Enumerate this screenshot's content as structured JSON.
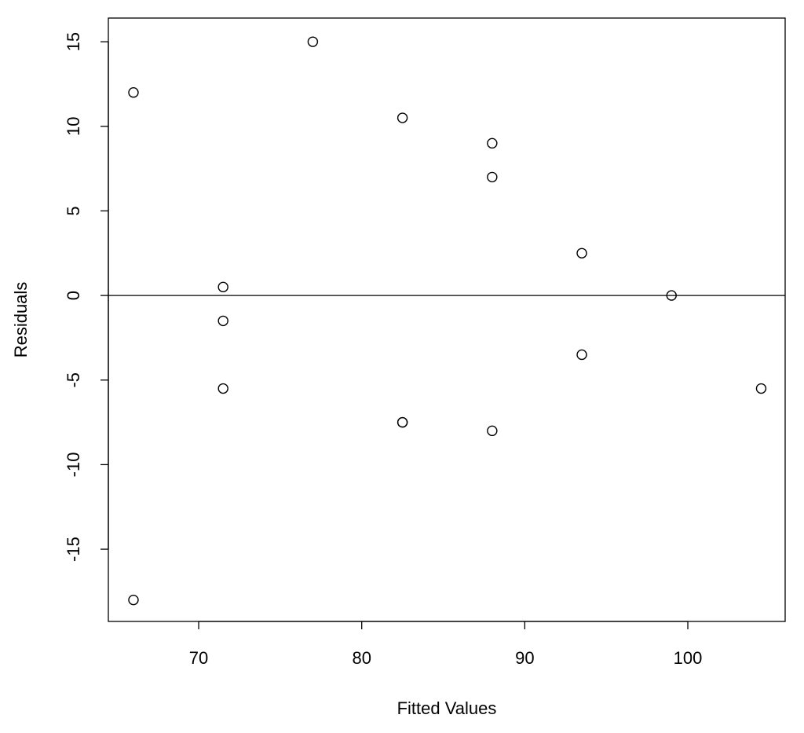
{
  "chart_data": {
    "type": "scatter",
    "xlabel": "Fitted Values",
    "ylabel": "Residuals",
    "x": [
      66,
      66,
      77,
      71.5,
      71.5,
      71.5,
      82.5,
      82.5,
      82.5,
      88,
      88,
      88,
      93.5,
      93.5,
      99,
      104.5
    ],
    "y": [
      12,
      -18,
      15,
      0.5,
      -1.5,
      -5.5,
      10.5,
      -7.5,
      -7.5,
      9,
      7,
      -8,
      2.5,
      -3.5,
      0,
      -5.5
    ],
    "color": "#000000",
    "hline": 0,
    "xlim": [
      64.46,
      105.97
    ],
    "ylim": [
      -19.27,
      16.4
    ],
    "xticks": [
      70,
      80,
      90,
      100
    ],
    "yticks": [
      -15,
      -10,
      -5,
      0,
      5,
      10,
      15
    ]
  }
}
